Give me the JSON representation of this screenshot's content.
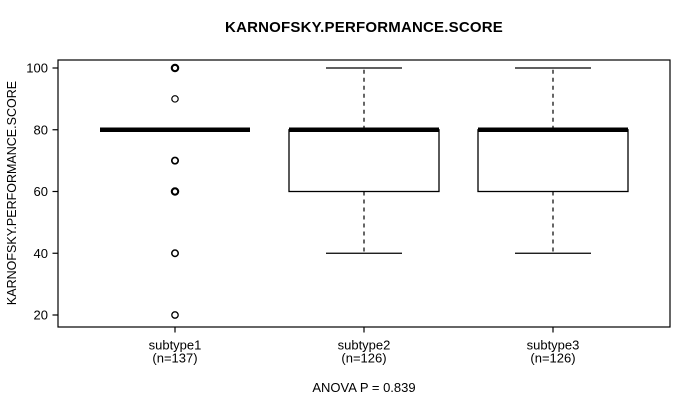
{
  "colors": {
    "foreground": "#000000",
    "background": "#ffffff"
  },
  "chart_data": {
    "type": "boxplot",
    "title": "KARNOFSKY.PERFORMANCE.SCORE",
    "ylabel": "KARNOFSKY.PERFORMANCE.SCORE",
    "note": "ANOVA P = 0.839",
    "yticks": [
      20,
      40,
      60,
      80,
      100
    ],
    "ylim": [
      17,
      103
    ],
    "grid": false,
    "legend": "none",
    "whisker_style": "dashed",
    "groups": [
      {
        "label": "subtype1",
        "n_label": "(n=137)",
        "q1": 80,
        "median": 80,
        "q3": 80,
        "whisker_low": 80,
        "whisker_high": 80,
        "outliers": [
          100,
          90,
          70,
          60,
          40,
          20
        ],
        "outlier_weights": [
          2.1,
          1.2,
          1.7,
          2.1,
          1.5,
          1.3
        ]
      },
      {
        "label": "subtype2",
        "n_label": "(n=126)",
        "q1": 60,
        "median": 80,
        "q3": 80,
        "whisker_low": 40,
        "whisker_high": 100,
        "outliers": [],
        "outlier_weights": []
      },
      {
        "label": "subtype3",
        "n_label": "(n=126)",
        "q1": 60,
        "median": 80,
        "q3": 80,
        "whisker_low": 40,
        "whisker_high": 100,
        "outliers": [],
        "outlier_weights": []
      }
    ]
  }
}
